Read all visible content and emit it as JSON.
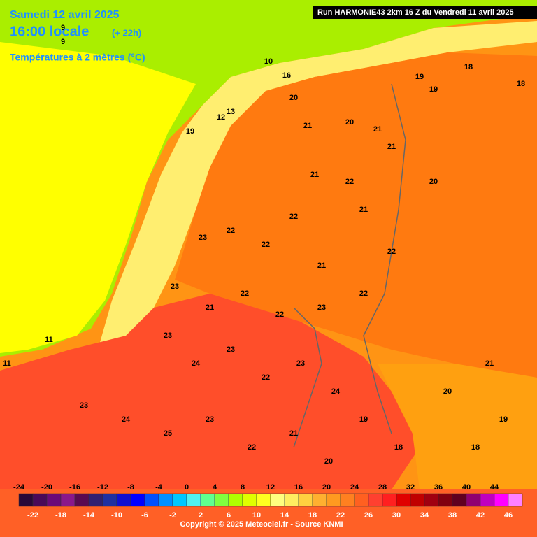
{
  "header": {
    "date": "Samedi 12 avril 2025",
    "time": "16:00 locale",
    "offset": "(+ 22h)",
    "field": "Températures à 2 mètres (°C)",
    "run": "Run HARMONIE43 2km 16 Z du Vendredi 11 avril 2025"
  },
  "color_scale": {
    "colors": [
      "#2a0838",
      "#4a0a58",
      "#6c0a78",
      "#8a188a",
      "#5a0a50",
      "#302070",
      "#2030a0",
      "#1010d0",
      "#0000ff",
      "#0050ff",
      "#0090ff",
      "#00c8ff",
      "#50f0f0",
      "#60ff90",
      "#80ff40",
      "#b0ff00",
      "#e0ff00",
      "#ffff20",
      "#ffff80",
      "#ffee60",
      "#ffd040",
      "#ffb030",
      "#ff9a20",
      "#ff8020",
      "#ff6020",
      "#ff4030",
      "#ff2020",
      "#e00000",
      "#c00000",
      "#a00010",
      "#800010",
      "#600020",
      "#900070",
      "#c000c0",
      "#ff00ff",
      "#ff80ff"
    ],
    "labels": [
      -24,
      -22,
      -20,
      -18,
      -16,
      -14,
      -12,
      -10,
      -8,
      -6,
      -4,
      -2,
      0,
      2,
      4,
      6,
      8,
      10,
      12,
      14,
      16,
      18,
      20,
      22,
      24,
      26,
      28,
      30,
      32,
      34,
      36,
      38,
      40,
      42,
      44,
      46
    ]
  },
  "map_labels": [
    "9",
    "10",
    "16",
    "12",
    "13",
    "19",
    "18",
    "19",
    "19",
    "18",
    "20",
    "21",
    "20",
    "21",
    "21",
    "22",
    "21",
    "22",
    "21",
    "20",
    "22",
    "22",
    "23",
    "21",
    "22",
    "23",
    "21",
    "22",
    "22",
    "23",
    "22",
    "23",
    "24",
    "23",
    "22",
    "23",
    "24",
    "23",
    "24",
    "25",
    "23",
    "22",
    "21",
    "20",
    "19",
    "18",
    "20",
    "21",
    "19",
    "18",
    "11",
    "9",
    "11"
  ],
  "footer": {
    "copyright": "Copyright © 2025 Meteociel.fr - Source KNMI"
  }
}
